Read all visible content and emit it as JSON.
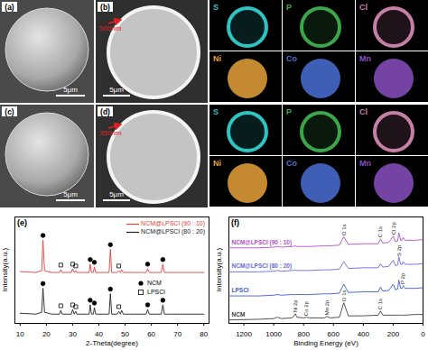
{
  "figure": {
    "rows": [
      {
        "sem": {
          "label": "(a)",
          "scale_bar": "5μm"
        },
        "cross_section": {
          "label": "(b)",
          "scale_bar": "5μm",
          "coating": "500nm"
        },
        "maps": [
          {
            "element": "S",
            "color": "#2ec4c4"
          },
          {
            "element": "P",
            "color": "#3aa84a"
          },
          {
            "element": "Cl",
            "color": "#c87fa6"
          },
          {
            "element": "Ni",
            "color": "#e8a23a"
          },
          {
            "element": "Co",
            "color": "#4a6fd6"
          },
          {
            "element": "Mn",
            "color": "#8a4fc0"
          }
        ]
      },
      {
        "sem": {
          "label": "(c)",
          "scale_bar": "5μm"
        },
        "cross_section": {
          "label": "(d)",
          "scale_bar": "5μm",
          "coating": "350nm"
        },
        "maps": [
          {
            "element": "S",
            "color": "#2ec4c4"
          },
          {
            "element": "P",
            "color": "#3aa84a"
          },
          {
            "element": "Cl",
            "color": "#c87fa6"
          },
          {
            "element": "Ni",
            "color": "#e8a23a"
          },
          {
            "element": "Co",
            "color": "#4a6fd6"
          },
          {
            "element": "Mn",
            "color": "#8a4fc0"
          }
        ]
      }
    ]
  },
  "chart_data": [
    {
      "title": "(e)",
      "type": "line",
      "xlabel": "2-Theta(degree)",
      "ylabel": "Intensity(a.u.)",
      "xlim": [
        8,
        82
      ],
      "ylim": [
        0,
        115
      ],
      "xticks": [
        10,
        20,
        30,
        40,
        50,
        60,
        70,
        80
      ],
      "tick_labels": "x",
      "legend": "upper right",
      "x": [
        10,
        16,
        18.2,
        18.7,
        19.3,
        22,
        25,
        25.5,
        26,
        29.5,
        30,
        30.6,
        31.2,
        31.6,
        34,
        36.3,
        36.7,
        37.2,
        37.9,
        38.3,
        38.8,
        43.9,
        44.4,
        44.9,
        47,
        47.6,
        48.2,
        48.7,
        49.3,
        58,
        58.6,
        59.2,
        63.8,
        64.4,
        65,
        68,
        80
      ],
      "series": [
        {
          "name": "NCM@LPSCl (90 : 10)",
          "color": "#e0403a",
          "values": [
            56,
            55,
            57,
            90,
            57,
            55,
            55,
            58,
            55,
            55,
            59,
            55,
            57,
            55,
            55,
            55,
            64,
            55,
            55,
            61,
            55,
            55,
            80,
            55,
            55,
            57,
            55,
            58,
            55,
            55,
            59,
            55,
            55,
            64,
            55,
            55,
            55
          ]
        },
        {
          "name": "NCM@LPSCl (80 : 20)",
          "color": "#222222",
          "values": [
            11,
            10,
            12,
            38,
            12,
            10,
            10,
            14,
            10,
            10,
            15,
            10,
            13,
            10,
            10,
            10,
            20,
            10,
            10,
            17,
            10,
            10,
            32,
            10,
            10,
            13,
            10,
            14,
            10,
            10,
            15,
            10,
            10,
            20,
            10,
            10,
            10
          ]
        }
      ],
      "phase_markers": [
        {
          "name": "NCM",
          "marker": "circle",
          "x": [
            18.7,
            36.7,
            38.3,
            44.4,
            58.6,
            64.4,
            18.7,
            36.7,
            38.3,
            44.4,
            58.6,
            64.4
          ],
          "y": [
            95,
            69,
            66,
            85,
            64,
            69,
            43,
            25,
            22,
            37,
            20,
            25
          ]
        },
        {
          "name": "LPSCl",
          "marker": "square",
          "x": [
            25.5,
            30,
            31.2,
            47.6,
            25.5,
            30,
            31.2,
            47.6
          ],
          "y": [
            63,
            64,
            62,
            62,
            19,
            20,
            18,
            18
          ]
        }
      ]
    },
    {
      "title": "(f)",
      "type": "line",
      "xlabel": "Binding Energy (eV)",
      "ylabel": "Intensity(a.u.)",
      "xlim": [
        1300,
        0
      ],
      "ylim": [
        0,
        155
      ],
      "xticks": [
        1200,
        1000,
        800,
        600,
        400,
        200,
        0
      ],
      "tick_labels": "x",
      "x": [
        1300,
        1100,
        1000,
        975,
        950,
        880,
        870,
        855,
        845,
        800,
        780,
        760,
        660,
        642,
        620,
        560,
        531,
        500,
        400,
        300,
        285,
        270,
        230,
        199,
        185,
        170,
        162,
        150,
        140,
        133,
        120,
        50,
        0
      ],
      "series": [
        {
          "name": "NCM@LPSCl (90 : 10)",
          "color": "#b050c8",
          "values": [
            110,
            110,
            111,
            112,
            111,
            112,
            112,
            113,
            112,
            112,
            112,
            112,
            113,
            113,
            113,
            114,
            126,
            115,
            116,
            116,
            123,
            117,
            118,
            127,
            119,
            120,
            132,
            121,
            121,
            125,
            121,
            121,
            122
          ]
        },
        {
          "name": "NCM@LPSCl (80 : 20)",
          "color": "#6a6ad8",
          "values": [
            75,
            75,
            76,
            77,
            76,
            77,
            77,
            78,
            77,
            77,
            77,
            77,
            78,
            78,
            78,
            79,
            90,
            80,
            81,
            81,
            87,
            82,
            83,
            92,
            84,
            85,
            97,
            86,
            86,
            90,
            86,
            86,
            87
          ]
        },
        {
          "name": "LPSCl",
          "color": "#3d5bd9",
          "values": [
            40,
            40,
            41,
            42,
            41,
            42,
            42,
            42,
            42,
            42,
            42,
            42,
            43,
            43,
            43,
            44,
            57,
            45,
            46,
            46,
            53,
            47,
            48,
            57,
            49,
            50,
            63,
            51,
            51,
            55,
            51,
            51,
            52
          ]
        },
        {
          "name": "NCM",
          "color": "#404040",
          "values": [
            5,
            6,
            7,
            9,
            7,
            8,
            9,
            14,
            9,
            8,
            9,
            8,
            8,
            10,
            8,
            9,
            30,
            11,
            11,
            12,
            18,
            12,
            12,
            12,
            12,
            12,
            12,
            12,
            12,
            12,
            12,
            13,
            13
          ]
        }
      ],
      "annotations": [
        {
          "x": 531,
          "y": 32,
          "text": "O 1s"
        },
        {
          "x": 285,
          "y": 20,
          "text": "C 1s"
        },
        {
          "x": 855,
          "y": 16,
          "text": "Ni 2p"
        },
        {
          "x": 780,
          "y": 11,
          "text": "Co 2p"
        },
        {
          "x": 642,
          "y": 12,
          "text": "Mn 2p"
        },
        {
          "x": 133,
          "y": 57,
          "text": "P 2p"
        },
        {
          "x": 162,
          "y": 98,
          "text": "S 2p"
        },
        {
          "x": 199,
          "y": 129,
          "text": "Cl 2p"
        },
        {
          "x": 531,
          "y": 128,
          "text": "O 1s"
        },
        {
          "x": 285,
          "y": 125,
          "text": "C 1s"
        }
      ]
    }
  ]
}
